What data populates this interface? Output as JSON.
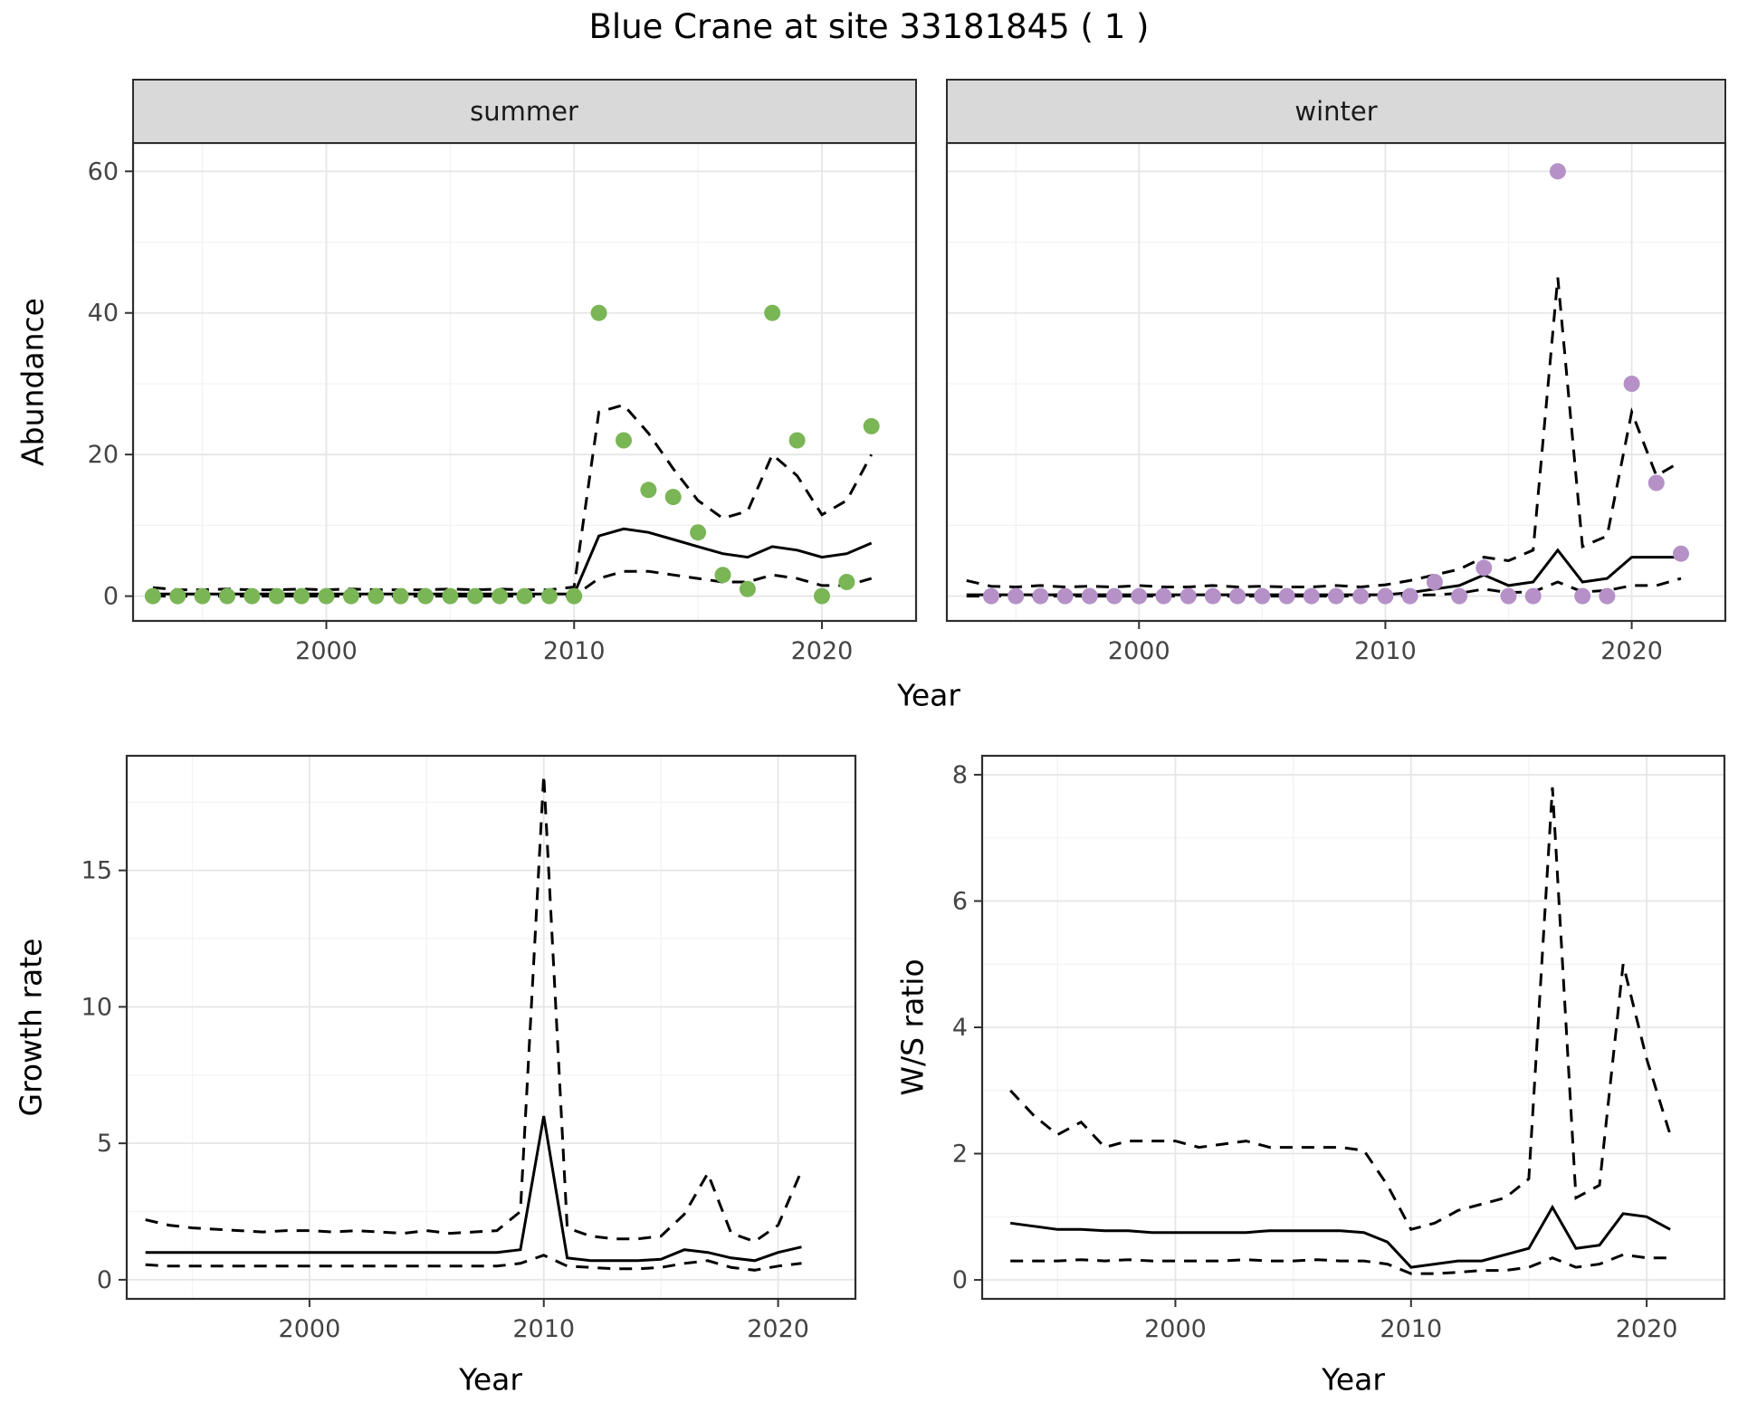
{
  "title": "Blue Crane at site 33181845 ( 1 )",
  "axes": {
    "abundance_ylabel": "Abundance",
    "top_xlabel": "Year",
    "growth_ylabel": "Growth rate",
    "growth_xlabel": "Year",
    "ws_ylabel": "W/S ratio",
    "ws_xlabel": "Year"
  },
  "facets": {
    "summer": "summer",
    "winter": "winter"
  },
  "colors": {
    "summer_points": "#7ab556",
    "winter_points": "#b591c8",
    "line": "#000000",
    "strip_bg": "#d9d9d9",
    "panel_border": "#2d2d2d",
    "grid_major": "#e6e6e6",
    "grid_minor": "#f2f2f2",
    "tick_text": "#444444"
  },
  "chart_data": [
    {
      "id": "summer",
      "type": "line+scatter",
      "facet": "summer",
      "xlabel": "Year",
      "ylabel": "Abundance",
      "xlim": [
        1992.2,
        2023.8
      ],
      "ylim": [
        -3.5,
        64
      ],
      "xticks": [
        2000,
        2010,
        2020
      ],
      "yticks": [
        0,
        20,
        40,
        60
      ],
      "xminor": [
        1995,
        2005,
        2015
      ],
      "yminor": [
        10,
        30,
        50
      ],
      "show_y_axis": true,
      "series": [
        {
          "name": "mean",
          "style": "solid",
          "x": [
            1993,
            1994,
            1995,
            1996,
            1997,
            1998,
            1999,
            2000,
            2001,
            2002,
            2003,
            2004,
            2005,
            2006,
            2007,
            2008,
            2009,
            2010,
            2011,
            2012,
            2013,
            2014,
            2015,
            2016,
            2017,
            2018,
            2019,
            2020,
            2021,
            2022
          ],
          "y": [
            0.3,
            0.3,
            0.3,
            0.3,
            0.3,
            0.3,
            0.3,
            0.3,
            0.3,
            0.3,
            0.3,
            0.3,
            0.3,
            0.3,
            0.3,
            0.3,
            0.3,
            0.3,
            8.5,
            9.5,
            9,
            8,
            7,
            6,
            5.5,
            7,
            6.5,
            5.5,
            6,
            7.5
          ]
        },
        {
          "name": "upper_ci",
          "style": "dashed",
          "x": [
            1993,
            1994,
            1995,
            1996,
            1997,
            1998,
            1999,
            2000,
            2001,
            2002,
            2003,
            2004,
            2005,
            2006,
            2007,
            2008,
            2009,
            2010,
            2011,
            2012,
            2013,
            2014,
            2015,
            2016,
            2017,
            2018,
            2019,
            2020,
            2021,
            2022
          ],
          "y": [
            1.2,
            0.9,
            0.9,
            1,
            0.9,
            0.9,
            1,
            0.9,
            1,
            0.9,
            0.9,
            0.9,
            1,
            0.9,
            1,
            0.9,
            0.9,
            1.3,
            26,
            27,
            23,
            18,
            13.5,
            11,
            12,
            20,
            17,
            11.5,
            13.5,
            20
          ]
        },
        {
          "name": "lower_ci",
          "style": "dashed",
          "x": [
            1993,
            1994,
            1995,
            1996,
            1997,
            1998,
            1999,
            2000,
            2001,
            2002,
            2003,
            2004,
            2005,
            2006,
            2007,
            2008,
            2009,
            2010,
            2011,
            2012,
            2013,
            2014,
            2015,
            2016,
            2017,
            2018,
            2019,
            2020,
            2021,
            2022
          ],
          "y": [
            0,
            0,
            0,
            0,
            0,
            0,
            0,
            0,
            0,
            0,
            0,
            0,
            0,
            0,
            0,
            0,
            0,
            0,
            2.5,
            3.5,
            3.5,
            3,
            2.5,
            2,
            2,
            3,
            2.5,
            1.5,
            1.5,
            2.5
          ]
        }
      ],
      "points": {
        "name": "observed_counts",
        "color": "#7ab556",
        "x": [
          1993,
          1994,
          1995,
          1996,
          1997,
          1998,
          1999,
          2000,
          2001,
          2002,
          2003,
          2004,
          2005,
          2006,
          2007,
          2008,
          2009,
          2010,
          2011,
          2012,
          2013,
          2014,
          2015,
          2016,
          2017,
          2018,
          2019,
          2020,
          2021,
          2022
        ],
        "y": [
          0,
          0,
          0,
          0,
          0,
          0,
          0,
          0,
          0,
          0,
          0,
          0,
          0,
          0,
          0,
          0,
          0,
          0,
          40,
          22,
          15,
          14,
          9,
          3,
          1,
          40,
          22,
          0,
          2,
          24
        ]
      }
    },
    {
      "id": "winter",
      "type": "line+scatter",
      "facet": "winter",
      "xlabel": "Year",
      "ylabel": "Abundance",
      "xlim": [
        1992.2,
        2023.8
      ],
      "ylim": [
        -3.5,
        64
      ],
      "xticks": [
        2000,
        2010,
        2020
      ],
      "yticks": [
        0,
        20,
        40,
        60
      ],
      "xminor": [
        1995,
        2005,
        2015
      ],
      "yminor": [
        10,
        30,
        50
      ],
      "show_y_axis": false,
      "series": [
        {
          "name": "mean",
          "style": "solid",
          "x": [
            1993,
            1994,
            1995,
            1996,
            1997,
            1998,
            1999,
            2000,
            2001,
            2002,
            2003,
            2004,
            2005,
            2006,
            2007,
            2008,
            2009,
            2010,
            2011,
            2012,
            2013,
            2014,
            2015,
            2016,
            2017,
            2018,
            2019,
            2020,
            2021,
            2022
          ],
          "y": [
            0.2,
            0.2,
            0.2,
            0.2,
            0.2,
            0.2,
            0.2,
            0.2,
            0.2,
            0.2,
            0.2,
            0.2,
            0.2,
            0.2,
            0.2,
            0.2,
            0.2,
            0.2,
            0.5,
            1,
            1.5,
            3,
            1.5,
            2,
            6.5,
            2,
            2.5,
            5.5,
            5.5,
            5.5
          ]
        },
        {
          "name": "upper_ci",
          "style": "dashed",
          "x": [
            1993,
            1994,
            1995,
            1996,
            1997,
            1998,
            1999,
            2000,
            2001,
            2002,
            2003,
            2004,
            2005,
            2006,
            2007,
            2008,
            2009,
            2010,
            2011,
            2012,
            2013,
            2014,
            2015,
            2016,
            2017,
            2018,
            2019,
            2020,
            2021,
            2022
          ],
          "y": [
            2.2,
            1.4,
            1.3,
            1.5,
            1.3,
            1.4,
            1.3,
            1.5,
            1.3,
            1.3,
            1.5,
            1.3,
            1.4,
            1.3,
            1.3,
            1.5,
            1.3,
            1.6,
            2.2,
            3,
            3.8,
            5.5,
            5,
            6.5,
            45,
            7,
            8.5,
            26,
            17,
            19
          ]
        },
        {
          "name": "lower_ci",
          "style": "dashed",
          "x": [
            1993,
            1994,
            1995,
            1996,
            1997,
            1998,
            1999,
            2000,
            2001,
            2002,
            2003,
            2004,
            2005,
            2006,
            2007,
            2008,
            2009,
            2010,
            2011,
            2012,
            2013,
            2014,
            2015,
            2016,
            2017,
            2018,
            2019,
            2020,
            2021,
            2022
          ],
          "y": [
            0,
            0,
            0,
            0,
            0,
            0,
            0,
            0,
            0,
            0,
            0,
            0,
            0,
            0,
            0,
            0,
            0,
            0,
            0.1,
            0.2,
            0.4,
            1,
            0.5,
            0.6,
            2,
            0.6,
            0.8,
            1.5,
            1.5,
            2.5
          ]
        }
      ],
      "points": {
        "name": "observed_counts",
        "color": "#b591c8",
        "x": [
          1994,
          1995,
          1996,
          1997,
          1998,
          1999,
          2000,
          2001,
          2002,
          2003,
          2004,
          2005,
          2006,
          2007,
          2008,
          2009,
          2010,
          2011,
          2012,
          2013,
          2014,
          2015,
          2016,
          2017,
          2018,
          2019,
          2020,
          2021,
          2022
        ],
        "y": [
          0,
          0,
          0,
          0,
          0,
          0,
          0,
          0,
          0,
          0,
          0,
          0,
          0,
          0,
          0,
          0,
          0,
          0,
          2,
          0,
          4,
          0,
          0,
          60,
          0,
          0,
          30,
          16,
          6
        ]
      }
    },
    {
      "id": "growth",
      "type": "line",
      "xlabel": "Year",
      "ylabel": "Growth rate",
      "xlim": [
        1992.2,
        2023.3
      ],
      "ylim": [
        -0.7,
        19.2
      ],
      "xticks": [
        2000,
        2010,
        2020
      ],
      "yticks": [
        0,
        5,
        10,
        15
      ],
      "xminor": [
        1995,
        2005,
        2015
      ],
      "yminor": [
        2.5,
        7.5,
        12.5,
        17.5
      ],
      "show_y_axis": true,
      "series": [
        {
          "name": "mean",
          "style": "solid",
          "x": [
            1993,
            1994,
            1995,
            1996,
            1997,
            1998,
            1999,
            2000,
            2001,
            2002,
            2003,
            2004,
            2005,
            2006,
            2007,
            2008,
            2009,
            2010,
            2011,
            2012,
            2013,
            2014,
            2015,
            2016,
            2017,
            2018,
            2019,
            2020,
            2021
          ],
          "y": [
            1,
            1,
            1,
            1,
            1,
            1,
            1,
            1,
            1,
            1,
            1,
            1,
            1,
            1,
            1,
            1,
            1.1,
            6,
            0.8,
            0.7,
            0.7,
            0.7,
            0.75,
            1.1,
            1,
            0.8,
            0.7,
            1,
            1.2
          ]
        },
        {
          "name": "upper_ci",
          "style": "dashed",
          "x": [
            1993,
            1994,
            1995,
            1996,
            1997,
            1998,
            1999,
            2000,
            2001,
            2002,
            2003,
            2004,
            2005,
            2006,
            2007,
            2008,
            2009,
            2010,
            2011,
            2012,
            2013,
            2014,
            2015,
            2016,
            2017,
            2018,
            2019,
            2020,
            2021
          ],
          "y": [
            2.2,
            2,
            1.9,
            1.85,
            1.8,
            1.75,
            1.8,
            1.8,
            1.75,
            1.8,
            1.75,
            1.7,
            1.8,
            1.7,
            1.75,
            1.8,
            2.5,
            18.5,
            1.9,
            1.6,
            1.5,
            1.5,
            1.6,
            2.4,
            3.9,
            1.7,
            1.4,
            2,
            4
          ]
        },
        {
          "name": "lower_ci",
          "style": "dashed",
          "x": [
            1993,
            1994,
            1995,
            1996,
            1997,
            1998,
            1999,
            2000,
            2001,
            2002,
            2003,
            2004,
            2005,
            2006,
            2007,
            2008,
            2009,
            2010,
            2011,
            2012,
            2013,
            2014,
            2015,
            2016,
            2017,
            2018,
            2019,
            2020,
            2021
          ],
          "y": [
            0.55,
            0.5,
            0.5,
            0.5,
            0.5,
            0.5,
            0.5,
            0.5,
            0.5,
            0.5,
            0.5,
            0.5,
            0.5,
            0.5,
            0.5,
            0.5,
            0.6,
            0.9,
            0.5,
            0.45,
            0.4,
            0.4,
            0.45,
            0.6,
            0.7,
            0.45,
            0.35,
            0.5,
            0.6
          ]
        }
      ]
    },
    {
      "id": "ws_ratio",
      "type": "line",
      "xlabel": "Year",
      "ylabel": "W/S ratio",
      "xlim": [
        1991.8,
        2023.3
      ],
      "ylim": [
        -0.3,
        8.3
      ],
      "xticks": [
        2000,
        2010,
        2020
      ],
      "yticks": [
        0,
        2,
        4,
        6,
        8
      ],
      "xminor": [
        1995,
        2005,
        2015
      ],
      "yminor": [
        1,
        3,
        5,
        7
      ],
      "show_y_axis": true,
      "series": [
        {
          "name": "mean",
          "style": "solid",
          "x": [
            1993,
            1994,
            1995,
            1996,
            1997,
            1998,
            1999,
            2000,
            2001,
            2002,
            2003,
            2004,
            2005,
            2006,
            2007,
            2008,
            2009,
            2010,
            2011,
            2012,
            2013,
            2014,
            2015,
            2016,
            2017,
            2018,
            2019,
            2020,
            2021
          ],
          "y": [
            0.9,
            0.85,
            0.8,
            0.8,
            0.78,
            0.78,
            0.75,
            0.75,
            0.75,
            0.75,
            0.75,
            0.78,
            0.78,
            0.78,
            0.78,
            0.75,
            0.6,
            0.2,
            0.25,
            0.3,
            0.3,
            0.4,
            0.5,
            1.15,
            0.5,
            0.55,
            1.05,
            1,
            0.8
          ]
        },
        {
          "name": "upper_ci",
          "style": "dashed",
          "x": [
            1993,
            1994,
            1995,
            1996,
            1997,
            1998,
            1999,
            2000,
            2001,
            2002,
            2003,
            2004,
            2005,
            2006,
            2007,
            2008,
            2009,
            2010,
            2011,
            2012,
            2013,
            2014,
            2015,
            2016,
            2017,
            2018,
            2019,
            2020,
            2021
          ],
          "y": [
            3,
            2.6,
            2.3,
            2.5,
            2.1,
            2.2,
            2.2,
            2.2,
            2.1,
            2.15,
            2.2,
            2.1,
            2.1,
            2.1,
            2.1,
            2.05,
            1.5,
            0.8,
            0.9,
            1.1,
            1.2,
            1.3,
            1.6,
            7.8,
            1.3,
            1.5,
            5,
            3.5,
            2.3
          ]
        },
        {
          "name": "lower_ci",
          "style": "dashed",
          "x": [
            1993,
            1994,
            1995,
            1996,
            1997,
            1998,
            1999,
            2000,
            2001,
            2002,
            2003,
            2004,
            2005,
            2006,
            2007,
            2008,
            2009,
            2010,
            2011,
            2012,
            2013,
            2014,
            2015,
            2016,
            2017,
            2018,
            2019,
            2020,
            2021
          ],
          "y": [
            0.3,
            0.3,
            0.3,
            0.32,
            0.3,
            0.32,
            0.3,
            0.3,
            0.3,
            0.3,
            0.32,
            0.3,
            0.3,
            0.32,
            0.3,
            0.3,
            0.25,
            0.1,
            0.1,
            0.12,
            0.15,
            0.15,
            0.2,
            0.35,
            0.2,
            0.25,
            0.4,
            0.35,
            0.35
          ]
        }
      ]
    }
  ]
}
